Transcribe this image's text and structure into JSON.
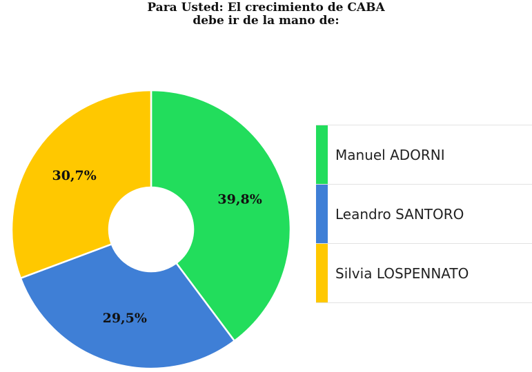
{
  "title_line1": "Para Usted: El crecimiento de CABA",
  "title_line2": "debe ir de la mano de:",
  "chart_data": {
    "type": "pie",
    "donut": true,
    "title": "Para Usted: El crecimiento de CABA debe ir de la mano de:",
    "legend_placement": "right",
    "slices": [
      {
        "name": "Manuel ADORNI",
        "value": 39.8,
        "label": "39,8%",
        "color": "#22dd5c"
      },
      {
        "name": "Leandro SANTORO",
        "value": 29.5,
        "label": "29,5%",
        "color": "#3f7fd6"
      },
      {
        "name": "Silvia LOSPENNATO",
        "value": 30.7,
        "label": "30,7%",
        "color": "#ffc800"
      }
    ]
  }
}
